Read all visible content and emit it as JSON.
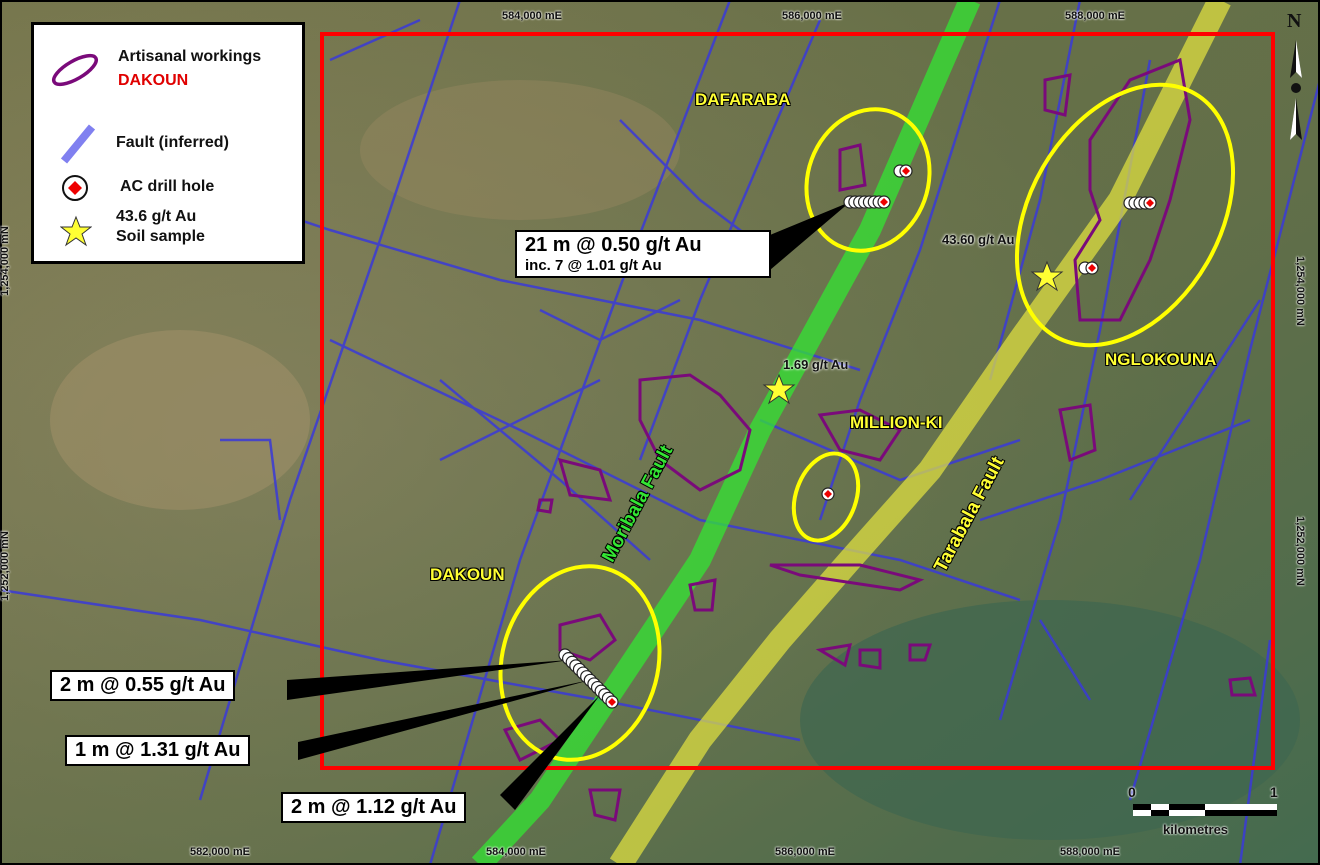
{
  "grid": {
    "top": [
      "584,000 mE",
      "586,000 mE",
      "588,000 mE"
    ],
    "bottom": [
      "582,000 mE",
      "584,000 mE",
      "586,000 mE",
      "588,000 mE"
    ],
    "left": [
      "1,254,000 mN",
      "1,252,000 mN"
    ],
    "right": [
      "1,254,000 mN",
      "1,252,000 mN"
    ]
  },
  "legend": {
    "artisanal_label": "Artisanal workings",
    "dakoun_label": "DAKOUN",
    "fault_label": "Fault (inferred)",
    "drill_label": "AC drill hole",
    "soil_line1": "43.6 g/t Au",
    "soil_line2": "Soil sample"
  },
  "places": {
    "dafaraba": "DAFARABA",
    "nglokouna": "NGLOKOUNA",
    "million_ki": "MILLION-KI",
    "dakoun": "DAKOUN"
  },
  "faults": {
    "moribala": "Moribala Fault",
    "tarabala": "Tarabala Fault"
  },
  "soil_values": {
    "nglokouna": "43.60 g/t Au",
    "central": "1.69 g/t Au"
  },
  "callouts": {
    "dafaraba_line1": "21 m @ 0.50 g/t Au",
    "dafaraba_line2": "inc. 7 @ 1.01 g/t Au",
    "dakoun_1": "2 m @ 0.55 g/t Au",
    "dakoun_2": "1 m @ 1.31 g/t Au",
    "dakoun_3": "2 m @ 1.12 g/t Au"
  },
  "north": "N",
  "scale": {
    "start": "0",
    "end": "1",
    "unit": "kilometres"
  },
  "colors": {
    "project_boundary": "#ff0000",
    "fault": "#3a3ad8",
    "moribala": "#33e633",
    "tarabala": "#e6e640",
    "workings": "#7a0a7a",
    "target": "#ffff00"
  }
}
